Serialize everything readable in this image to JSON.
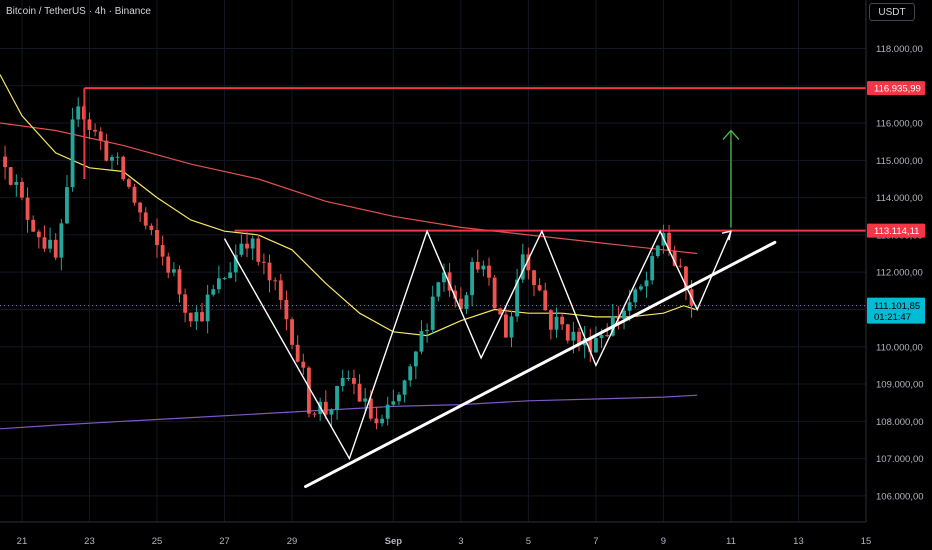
{
  "header": {
    "title": "Bitcoin / TetherUS · 4h · Binance",
    "currency": "USDT"
  },
  "price_axis": {
    "ticks": [
      "118.000,00",
      "117.000,00",
      "116.000,00",
      "115.000,00",
      "114.000,00",
      "113.000,00",
      "112.000,00",
      "111.000,00",
      "110.000,00",
      "109.000,00",
      "108.000,00",
      "107.000,00",
      "106.000,00"
    ]
  },
  "time_axis": {
    "ticks": [
      "21",
      "23",
      "25",
      "27",
      "29",
      "Sep",
      "3",
      "5",
      "7",
      "9",
      "11",
      "13",
      "15"
    ]
  },
  "tags": {
    "resistance_top": "116.935,99",
    "resistance_mid": "113.114,11",
    "last_price": "111.101,85",
    "countdown": "01:21:47"
  },
  "colors": {
    "up": "#26a69a",
    "down": "#ef5350",
    "level_line": "#f23645",
    "ema_yellow": "#f5e663",
    "ema_red": "#e05050",
    "ema_purple": "#7e57c2",
    "last_price": "#00bcd4",
    "arrow_green": "#4caf50"
  },
  "chart_data": {
    "type": "candlestick",
    "interval": "4h",
    "y_range": [
      105300,
      119300
    ],
    "x_range_days": [
      20.35,
      46.0
    ],
    "day_ticks": [
      21,
      23,
      25,
      27,
      29,
      32,
      34,
      36,
      38,
      40,
      42,
      44,
      46
    ],
    "levels": [
      116936,
      113114
    ],
    "last_price": 111102,
    "close_path_days": [
      20.5,
      21.0,
      21.5,
      22.0,
      22.3,
      22.6,
      22.9,
      23.3,
      23.7,
      24.2,
      24.8,
      25.4,
      25.8,
      26.2,
      26.8,
      27.2,
      27.6,
      28.0,
      28.5,
      29.0,
      29.5,
      30.0,
      30.3,
      30.7,
      31.2,
      31.6,
      32.0,
      32.5,
      33.0,
      33.4,
      34.0,
      34.5,
      35.0,
      35.4,
      35.8,
      36.2,
      36.6,
      37.1,
      37.6,
      38.0,
      38.4,
      38.8,
      39.2,
      39.6,
      40.0,
      40.3,
      40.6,
      40.9,
      41.0
    ],
    "close_path_prices": [
      115100,
      113800,
      113100,
      112300,
      113600,
      116900,
      116100,
      115500,
      115000,
      114200,
      112900,
      112100,
      111200,
      110800,
      111600,
      112200,
      113100,
      112300,
      111500,
      110400,
      108500,
      108300,
      108600,
      109200,
      108300,
      107800,
      108400,
      109200,
      110800,
      112100,
      111300,
      112400,
      111100,
      110300,
      112600,
      111900,
      110700,
      110500,
      110000,
      110300,
      110600,
      111000,
      111300,
      111900,
      113100,
      112300,
      111600,
      111100,
      111100
    ],
    "ema_yellow_days": [
      20.35,
      21.0,
      22.0,
      23.0,
      24.0,
      25.0,
      26.0,
      27.0,
      28.0,
      29.0,
      30.0,
      31.0,
      32.0,
      33.0,
      34.0,
      35.0,
      36.0,
      37.0,
      38.0,
      39.0,
      40.0,
      40.6,
      40.95
    ],
    "ema_yellow_prices": [
      117300,
      116200,
      115200,
      114800,
      114700,
      114000,
      113400,
      113100,
      113000,
      112600,
      111700,
      110900,
      110400,
      110300,
      110700,
      111000,
      110900,
      110900,
      110800,
      110800,
      110900,
      111100,
      111000
    ],
    "ema_red_days": [
      20.35,
      22.0,
      24.0,
      26.0,
      28.0,
      30.0,
      32.0,
      34.0,
      36.0,
      38.0,
      40.0,
      41.0
    ],
    "ema_red_prices": [
      116000,
      115800,
      115400,
      114900,
      114500,
      113900,
      113500,
      113200,
      113000,
      112800,
      112600,
      112500
    ],
    "ema_purple_days": [
      20.35,
      22.0,
      24.0,
      26.0,
      28.0,
      30.0,
      32.0,
      34.0,
      36.0,
      38.0,
      40.0,
      41.0
    ],
    "ema_purple_prices": [
      107800,
      107900,
      108000,
      108100,
      108200,
      108300,
      108400,
      108450,
      108550,
      108600,
      108650,
      108700
    ],
    "trendline": {
      "days": [
        29.4,
        43.3
      ],
      "prices": [
        106250,
        112800
      ]
    },
    "zigzag_days": [
      27.0,
      30.7,
      33.0,
      34.6,
      36.4,
      38.0,
      39.9,
      41.0,
      42.0
    ],
    "zigzag_prices": [
      112900,
      107000,
      113100,
      109700,
      113100,
      109500,
      113100,
      111000,
      113100
    ],
    "up_arrow": {
      "day": 42.0,
      "from": 113200,
      "to": 115800
    }
  }
}
